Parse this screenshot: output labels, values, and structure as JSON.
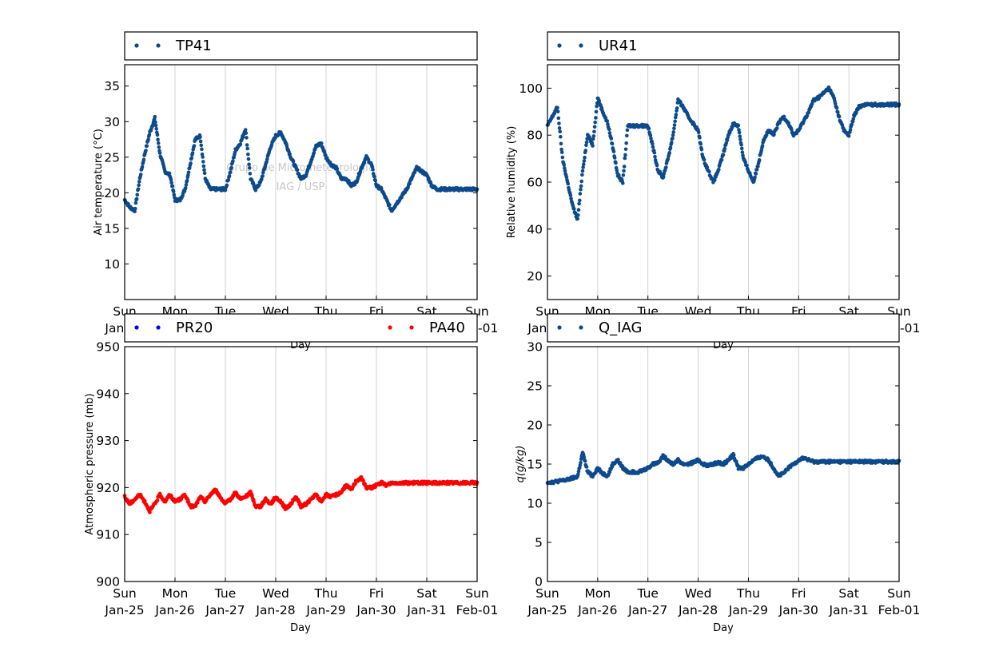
{
  "x_axis": {
    "label": "Day",
    "ticks": [
      {
        "day": "Sun",
        "date": "Jan-25"
      },
      {
        "day": "Mon",
        "date": "Jan-26"
      },
      {
        "day": "Tue",
        "date": "Jan-27"
      },
      {
        "day": "Wed",
        "date": "Jan-28"
      },
      {
        "day": "Thu",
        "date": "Jan-29"
      },
      {
        "day": "Fri",
        "date": "Jan-30"
      },
      {
        "day": "Sat",
        "date": "Jan-31"
      },
      {
        "day": "Sun",
        "date": "Feb-01"
      }
    ]
  },
  "watermark": {
    "line1": "Grupo de Micrometeorologia",
    "line2": "IAG / USP"
  },
  "colors": {
    "series": "#0d4a8c",
    "pr20": "#0000ff",
    "pa40": "#ff0000",
    "grid": "#c8c8c8"
  },
  "chart_data": [
    {
      "type": "scatter",
      "ylabel": "Air temperature (°C)",
      "xlabel": "Day",
      "ylim": [
        5,
        38
      ],
      "yticks": [
        10,
        15,
        20,
        25,
        30,
        35
      ],
      "legend_position": "top",
      "series": [
        {
          "name": "TP41",
          "color": "#0d4a8c",
          "x": [
            0.0,
            0.1,
            0.2,
            0.3,
            0.4,
            0.5,
            0.6,
            0.7,
            0.8,
            0.9,
            1.0,
            1.1,
            1.2,
            1.3,
            1.4,
            1.5,
            1.6,
            1.7,
            1.8,
            1.9,
            2.0,
            2.1,
            2.2,
            2.3,
            2.4,
            2.5,
            2.6,
            2.7,
            2.8,
            2.9,
            3.0,
            3.1,
            3.2,
            3.3,
            3.4,
            3.5,
            3.6,
            3.7,
            3.8,
            3.9,
            4.0,
            4.1,
            4.2,
            4.3,
            4.4,
            4.5,
            4.6,
            4.7,
            4.8,
            4.9,
            5.0,
            5.1,
            5.2,
            5.3,
            5.4,
            5.5,
            5.6,
            5.7,
            5.8,
            5.9,
            6.0,
            6.1,
            6.2,
            6.3,
            6.4,
            6.5,
            6.6,
            6.7,
            6.8,
            6.9,
            7.0
          ],
          "y": [
            19.0,
            18.0,
            17.5,
            22.0,
            25.5,
            28.5,
            30.5,
            25.5,
            23.0,
            22.5,
            19.0,
            19.0,
            20.5,
            24.0,
            27.5,
            28.0,
            22.0,
            20.5,
            20.5,
            20.5,
            20.5,
            23.0,
            26.0,
            27.0,
            29.0,
            22.0,
            20.5,
            21.5,
            24.0,
            26.5,
            28.0,
            28.5,
            27.0,
            25.0,
            23.5,
            22.0,
            22.5,
            24.5,
            26.5,
            27.0,
            25.0,
            24.0,
            23.5,
            22.0,
            22.0,
            21.0,
            21.5,
            23.5,
            25.0,
            24.0,
            21.0,
            20.5,
            19.0,
            17.5,
            18.5,
            19.5,
            20.5,
            22.0,
            23.5,
            23.0,
            22.5,
            21.0,
            20.5,
            20.5,
            20.5,
            20.5,
            20.5,
            20.5,
            20.5,
            20.5,
            20.5
          ]
        }
      ]
    },
    {
      "type": "scatter",
      "ylabel": "Relative humidity (%)",
      "xlabel": "Day",
      "ylim": [
        10,
        110
      ],
      "yticks": [
        20,
        40,
        60,
        80,
        100
      ],
      "legend_position": "top",
      "series": [
        {
          "name": "UR41",
          "color": "#0d4a8c",
          "x": [
            0.0,
            0.1,
            0.2,
            0.3,
            0.4,
            0.5,
            0.6,
            0.7,
            0.8,
            0.9,
            1.0,
            1.1,
            1.2,
            1.3,
            1.4,
            1.5,
            1.6,
            1.7,
            1.8,
            1.9,
            2.0,
            2.1,
            2.2,
            2.3,
            2.4,
            2.5,
            2.6,
            2.7,
            2.8,
            2.9,
            3.0,
            3.1,
            3.2,
            3.3,
            3.4,
            3.5,
            3.6,
            3.7,
            3.8,
            3.9,
            4.0,
            4.1,
            4.2,
            4.3,
            4.4,
            4.5,
            4.6,
            4.7,
            4.8,
            4.9,
            5.0,
            5.1,
            5.2,
            5.3,
            5.4,
            5.5,
            5.6,
            5.7,
            5.8,
            5.9,
            6.0,
            6.1,
            6.2,
            6.3,
            6.4,
            6.5,
            6.6,
            6.7,
            6.8,
            6.9,
            7.0
          ],
          "y": [
            84.0,
            88.0,
            92.0,
            70.0,
            60.0,
            50.0,
            44.0,
            65.0,
            80.0,
            76.0,
            96.0,
            90.0,
            85.0,
            75.0,
            63.0,
            60.0,
            84.0,
            84.0,
            84.0,
            84.0,
            84.0,
            75.0,
            65.0,
            62.0,
            70.0,
            80.0,
            95.0,
            92.0,
            88.0,
            85.0,
            82.0,
            70.0,
            65.0,
            60.0,
            65.0,
            72.0,
            80.0,
            85.0,
            84.0,
            70.0,
            65.0,
            60.0,
            68.0,
            78.0,
            82.0,
            80.0,
            85.0,
            88.0,
            85.0,
            80.0,
            82.0,
            86.0,
            90.0,
            95.0,
            96.0,
            98.0,
            100.0,
            96.0,
            88.0,
            82.0,
            80.0,
            88.0,
            92.0,
            93.0,
            93.0,
            93.0,
            93.0,
            93.0,
            93.0,
            93.0,
            93.0
          ]
        }
      ]
    },
    {
      "type": "scatter",
      "ylabel": "Atmospheric pressure (mb)",
      "xlabel": "Day",
      "ylim": [
        900,
        950
      ],
      "yticks": [
        900,
        910,
        920,
        930,
        940,
        950
      ],
      "legend_position": "top",
      "series": [
        {
          "name": "PR20",
          "color": "#0000ff",
          "x": [],
          "y": []
        },
        {
          "name": "PA40",
          "color": "#ff0000",
          "x": [
            0.0,
            0.1,
            0.2,
            0.3,
            0.4,
            0.5,
            0.6,
            0.7,
            0.8,
            0.9,
            1.0,
            1.1,
            1.2,
            1.3,
            1.4,
            1.5,
            1.6,
            1.7,
            1.8,
            1.9,
            2.0,
            2.1,
            2.2,
            2.3,
            2.4,
            2.5,
            2.6,
            2.7,
            2.8,
            2.9,
            3.0,
            3.1,
            3.2,
            3.3,
            3.4,
            3.5,
            3.6,
            3.7,
            3.8,
            3.9,
            4.0,
            4.1,
            4.2,
            4.3,
            4.4,
            4.5,
            4.6,
            4.7,
            4.8,
            4.9,
            5.0,
            5.1,
            5.2,
            5.3,
            5.4,
            5.5,
            5.6,
            5.7,
            5.8,
            5.9,
            6.0,
            6.1,
            6.2,
            6.3,
            6.4,
            6.5,
            6.6,
            6.7,
            6.8,
            6.9,
            7.0
          ],
          "y": [
            918.0,
            916.5,
            917.5,
            918.5,
            917.0,
            915.0,
            916.5,
            918.5,
            917.0,
            918.5,
            917.0,
            917.5,
            918.5,
            916.0,
            916.0,
            918.0,
            917.0,
            918.5,
            919.5,
            918.0,
            916.5,
            917.5,
            919.0,
            917.5,
            918.0,
            919.0,
            916.0,
            916.0,
            917.5,
            916.5,
            918.0,
            917.0,
            915.5,
            916.5,
            918.0,
            916.0,
            916.5,
            917.5,
            918.5,
            917.0,
            918.5,
            918.0,
            918.5,
            919.0,
            920.5,
            919.5,
            921.5,
            922.0,
            920.0,
            920.0,
            920.5,
            921.0,
            920.5,
            921.0,
            921.0,
            921.0,
            921.0,
            921.0,
            921.0,
            921.0,
            921.0,
            921.0,
            921.0,
            921.0,
            921.0,
            921.0,
            921.0,
            921.0,
            921.0,
            921.0,
            921.0
          ]
        }
      ]
    },
    {
      "type": "scatter",
      "ylabel": "q(g/kg)",
      "xlabel": "Day",
      "ylim": [
        0,
        30
      ],
      "yticks": [
        0,
        5,
        10,
        15,
        20,
        25,
        30
      ],
      "legend_position": "top",
      "series": [
        {
          "name": "Q_IAG",
          "color": "#0d4a8c",
          "x": [
            0.0,
            0.1,
            0.2,
            0.3,
            0.4,
            0.5,
            0.6,
            0.7,
            0.8,
            0.9,
            1.0,
            1.1,
            1.2,
            1.3,
            1.4,
            1.5,
            1.6,
            1.7,
            1.8,
            1.9,
            2.0,
            2.1,
            2.2,
            2.3,
            2.4,
            2.5,
            2.6,
            2.7,
            2.8,
            2.9,
            3.0,
            3.1,
            3.2,
            3.3,
            3.4,
            3.5,
            3.6,
            3.7,
            3.8,
            3.9,
            4.0,
            4.1,
            4.2,
            4.3,
            4.4,
            4.5,
            4.6,
            4.7,
            4.8,
            4.9,
            5.0,
            5.1,
            5.2,
            5.3,
            5.4,
            5.5,
            5.6,
            5.7,
            5.8,
            5.9,
            6.0,
            6.1,
            6.2,
            6.3,
            6.4,
            6.5,
            6.6,
            6.7,
            6.8,
            6.9,
            7.0
          ],
          "y": [
            12.7,
            12.7,
            12.8,
            12.9,
            13.0,
            13.2,
            13.4,
            16.5,
            14.0,
            13.5,
            14.5,
            13.8,
            13.5,
            15.0,
            15.5,
            14.5,
            14.0,
            14.0,
            14.0,
            14.2,
            14.5,
            15.0,
            15.2,
            16.0,
            15.5,
            15.0,
            15.5,
            15.0,
            15.0,
            15.2,
            15.5,
            15.0,
            14.8,
            15.0,
            15.2,
            15.0,
            15.5,
            16.2,
            14.5,
            14.5,
            15.0,
            15.5,
            15.8,
            16.0,
            15.5,
            14.5,
            13.5,
            13.8,
            14.5,
            15.0,
            15.5,
            15.8,
            15.5,
            15.3,
            15.3,
            15.3,
            15.3,
            15.3,
            15.3,
            15.3,
            15.3,
            15.3,
            15.3,
            15.3,
            15.3,
            15.3,
            15.3,
            15.3,
            15.3,
            15.3,
            15.3
          ]
        }
      ]
    }
  ]
}
